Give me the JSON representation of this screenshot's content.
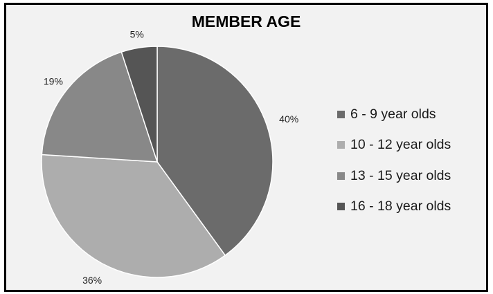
{
  "chart_data": {
    "type": "pie",
    "title": "MEMBER AGE",
    "categories": [
      "6 - 9 year olds",
      "10 - 12 year olds",
      "13 - 15 year olds",
      "16 - 18 year olds"
    ],
    "values": [
      40,
      36,
      19,
      5
    ],
    "value_labels": [
      "40%",
      "36%",
      "19%",
      "5%"
    ],
    "colors": [
      "#6b6b6b",
      "#adadad",
      "#888888",
      "#555555"
    ],
    "start_angle": "12 o'clock, clockwise",
    "legend_position": "right"
  }
}
